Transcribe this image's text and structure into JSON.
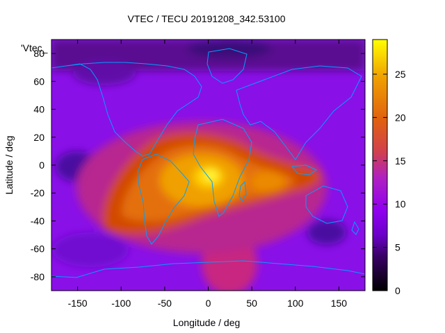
{
  "chart_data": {
    "type": "heatmap",
    "title": "VTEC / TECU 20191208_342.53100",
    "xlabel": "Longitude / deg",
    "ylabel": "Latitude / deg",
    "xlim": [
      -180,
      180
    ],
    "ylim": [
      -90,
      90
    ],
    "xticks": [
      -150,
      -100,
      -50,
      0,
      50,
      100,
      150
    ],
    "yticks": [
      -80,
      -60,
      -40,
      -20,
      0,
      20,
      40,
      60,
      80
    ],
    "colorbar": {
      "min": 0,
      "max": 29,
      "ticks": [
        0,
        5,
        10,
        15,
        20,
        25
      ]
    },
    "legend_entry": "'Vtec_",
    "grid": false,
    "peak": {
      "lon": 5,
      "lat": -10,
      "value": 28
    },
    "regions": [
      {
        "name": "equatorial-anomaly-core",
        "lon": [
          -110,
          125
        ],
        "lat": [
          -55,
          30
        ],
        "value_range": [
          15,
          28
        ]
      },
      {
        "name": "background",
        "value_range": [
          5,
          12
        ]
      },
      {
        "name": "southern-plume",
        "lon": [
          0,
          50
        ],
        "lat": [
          -90,
          -60
        ],
        "value_range": [
          12,
          15
        ]
      }
    ]
  },
  "colors": {
    "palette": [
      "#000000",
      "#3a0068",
      "#6a00c8",
      "#9000f0",
      "#b020c0",
      "#d04050",
      "#e06010",
      "#f0a000",
      "#ffff00"
    ],
    "coastline": "#00a0ff"
  }
}
